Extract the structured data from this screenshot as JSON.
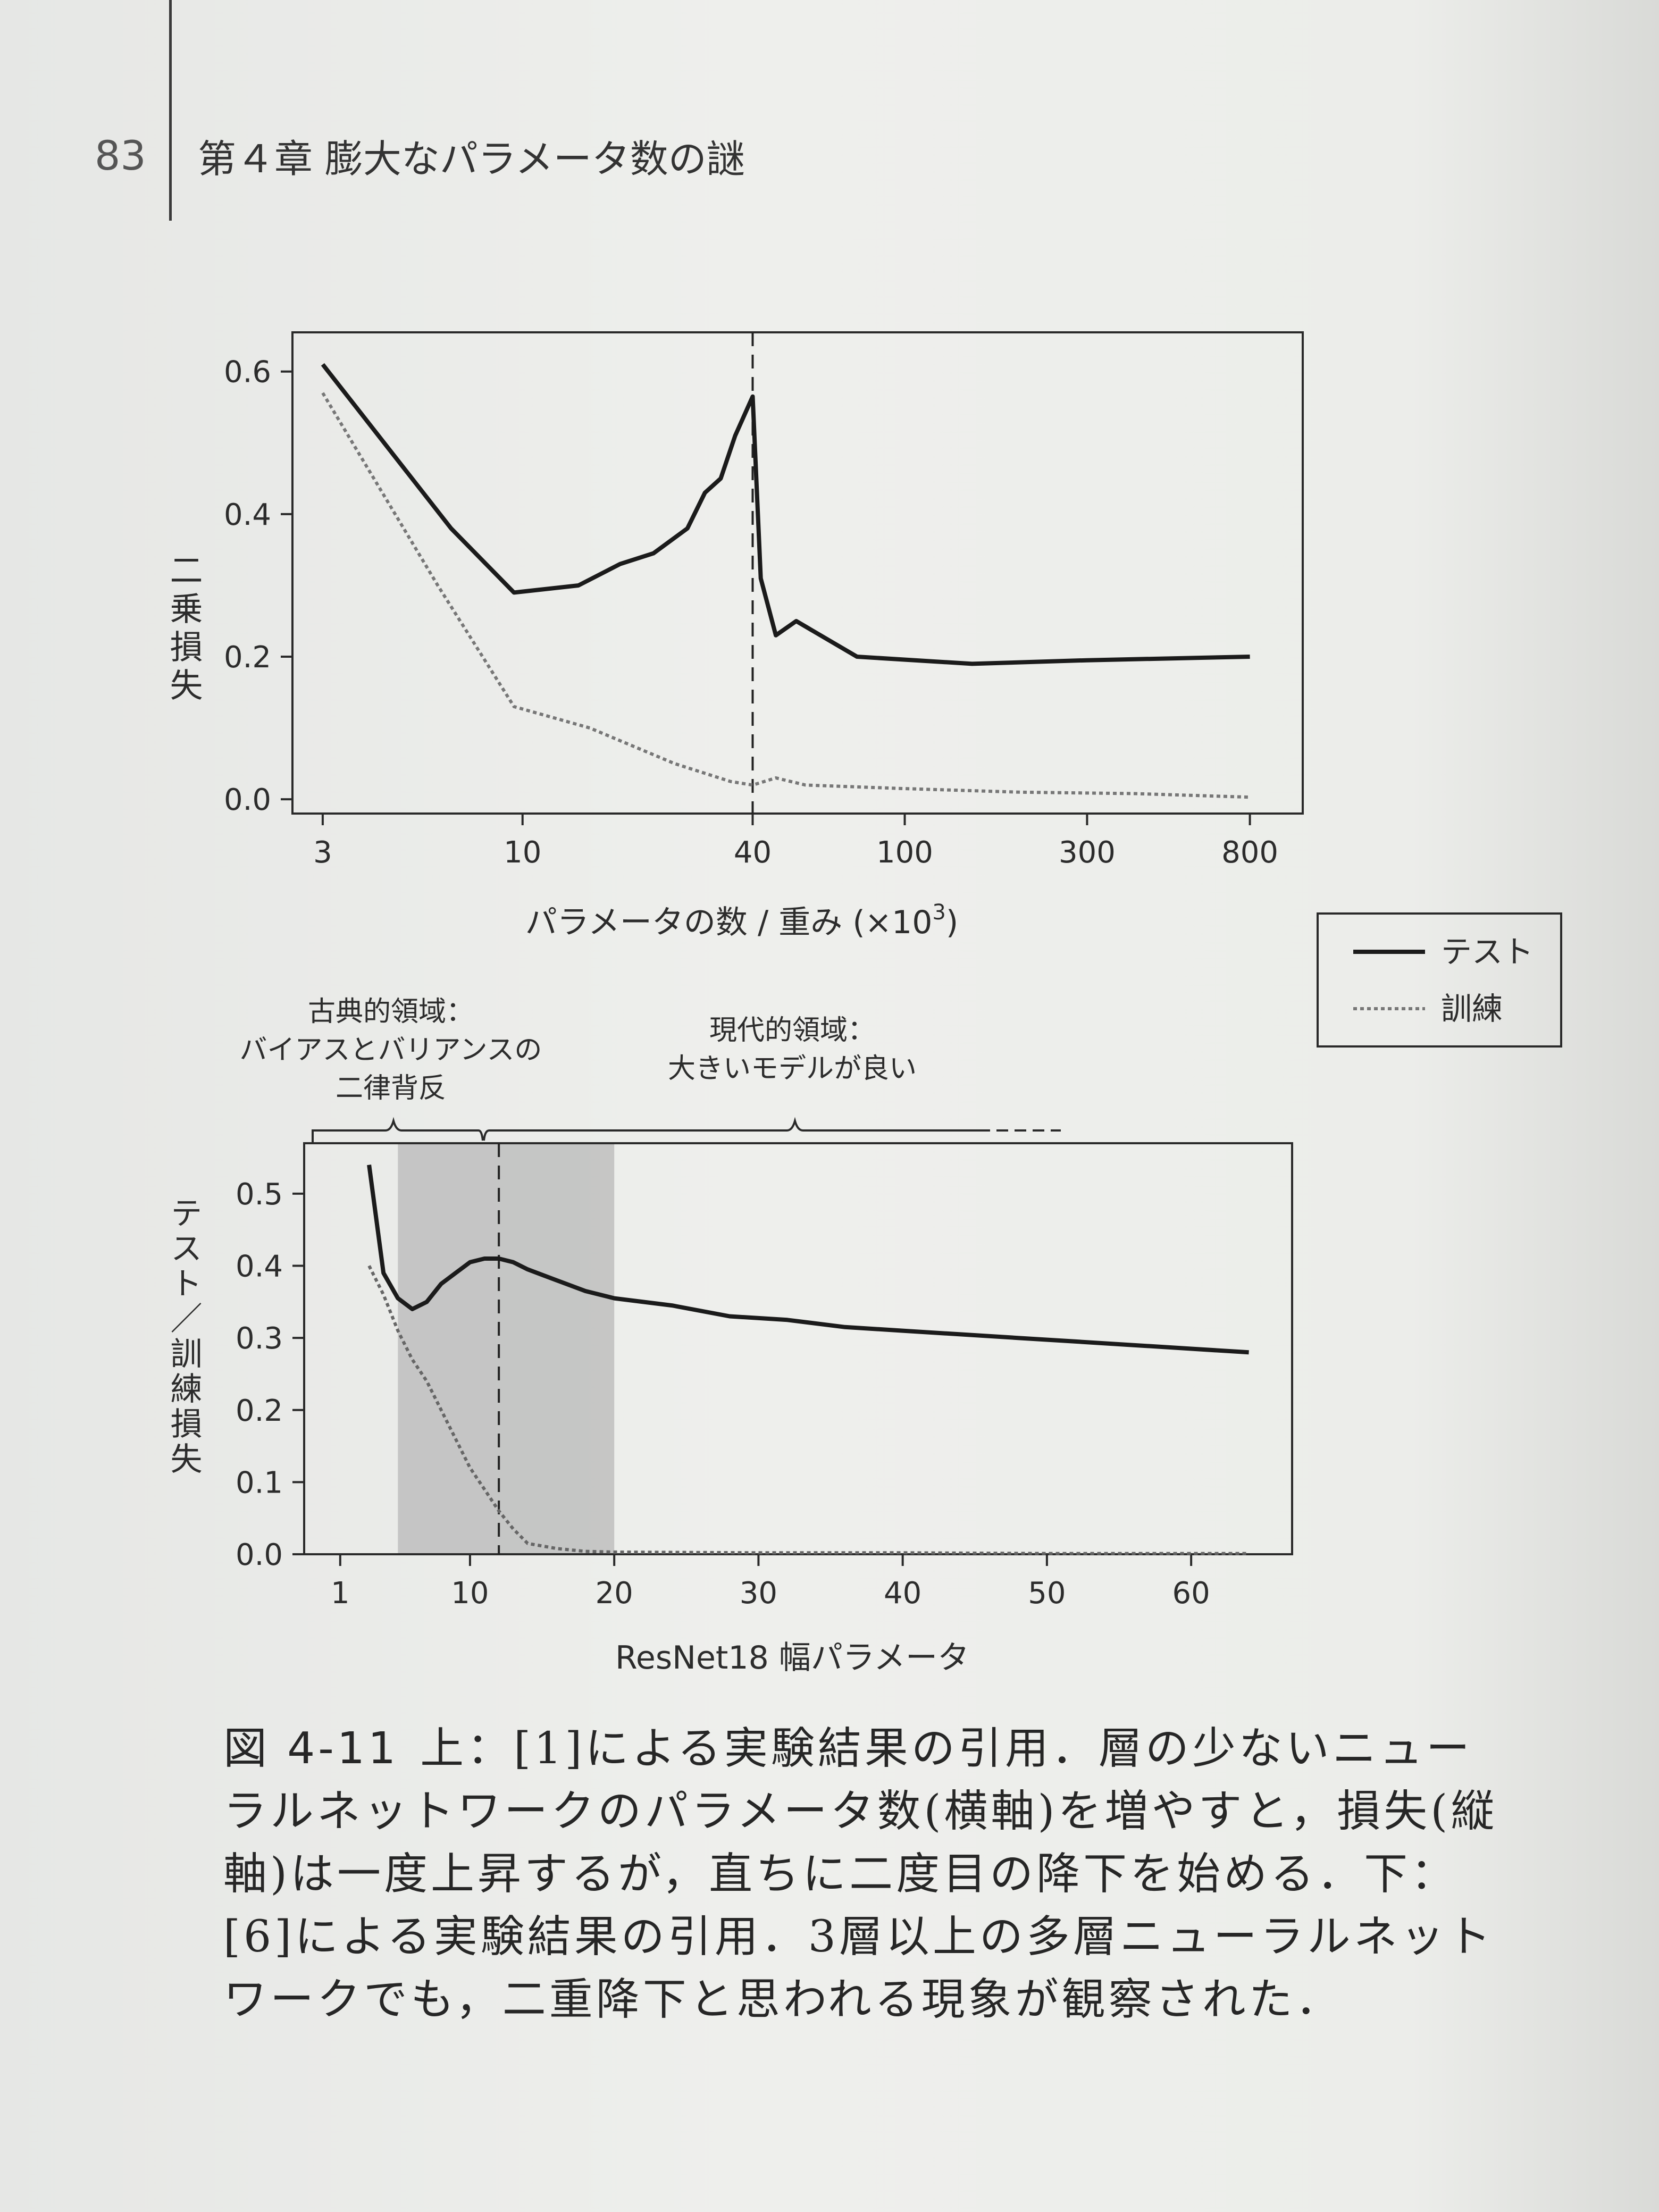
{
  "header": {
    "page_number": "83",
    "chapter_title": "第４章 膨大なパラメータ数の謎"
  },
  "legend": {
    "items": [
      {
        "label": "テスト",
        "style": "solid"
      },
      {
        "label": "訓練",
        "style": "dotted"
      }
    ]
  },
  "annotations": {
    "classical": [
      "古典的領域：",
      "バイアスとバリアンスの",
      "二律背反"
    ],
    "modern": [
      "現代的領域：",
      "大きいモデルが良い"
    ]
  },
  "chart_data": [
    {
      "type": "line",
      "xscale": "log",
      "xlabel_main": "パラメータの数 / 重み (×10",
      "xlabel_sup": "3",
      "xlabel_end": ")",
      "ylabel": "二乗損失",
      "xlim": [
        2.5,
        1100
      ],
      "ylim": [
        -0.02,
        0.655
      ],
      "xticks": [
        3,
        10,
        40,
        100,
        300,
        800
      ],
      "xtick_labels": [
        "3",
        "10",
        "40",
        "100",
        "300",
        "800"
      ],
      "yticks": [
        0.0,
        0.2,
        0.4,
        0.6
      ],
      "ytick_labels": [
        "0.0",
        "0.2",
        "0.4",
        "0.6"
      ],
      "vline": 40,
      "series": [
        {
          "name": "テスト",
          "style": "solid",
          "x": [
            3,
            6.5,
            9.5,
            14,
            18,
            22,
            27,
            30,
            33,
            36,
            40,
            42,
            46,
            52,
            75,
            150,
            300,
            800
          ],
          "y": [
            0.61,
            0.38,
            0.29,
            0.3,
            0.33,
            0.345,
            0.38,
            0.43,
            0.45,
            0.51,
            0.565,
            0.31,
            0.23,
            0.25,
            0.2,
            0.19,
            0.195,
            0.2
          ]
        },
        {
          "name": "訓練",
          "style": "dotted",
          "x": [
            3,
            6,
            9.5,
            15,
            25,
            35,
            40,
            46,
            55,
            100,
            200,
            400,
            800
          ],
          "y": [
            0.57,
            0.3,
            0.13,
            0.1,
            0.05,
            0.025,
            0.02,
            0.03,
            0.02,
            0.015,
            0.01,
            0.008,
            0.003
          ]
        }
      ]
    },
    {
      "type": "line",
      "xscale": "linear",
      "xlabel": "ResNet18 幅パラメータ",
      "ylabel": "テスト／訓練損失",
      "xlim": [
        -1.5,
        67
      ],
      "ylim": [
        0,
        0.57
      ],
      "xticks": [
        1,
        10,
        20,
        30,
        40,
        50,
        60
      ],
      "xtick_labels": [
        "1",
        "10",
        "20",
        "30",
        "40",
        "50",
        "60"
      ],
      "yticks": [
        0.0,
        0.1,
        0.2,
        0.3,
        0.4,
        0.5
      ],
      "ytick_labels": [
        "0.0",
        "0.1",
        "0.2",
        "0.3",
        "0.4",
        "0.5"
      ],
      "vline": 12,
      "shaded_region": [
        5,
        20
      ],
      "series": [
        {
          "name": "テスト",
          "style": "solid",
          "x": [
            3,
            4,
            5,
            6,
            7,
            8,
            9,
            10,
            11,
            12,
            13,
            14,
            16,
            18,
            20,
            24,
            28,
            32,
            36,
            40,
            44,
            48,
            52,
            56,
            60,
            64
          ],
          "y": [
            0.54,
            0.39,
            0.355,
            0.34,
            0.35,
            0.375,
            0.39,
            0.405,
            0.41,
            0.41,
            0.405,
            0.395,
            0.38,
            0.365,
            0.355,
            0.345,
            0.33,
            0.325,
            0.315,
            0.31,
            0.305,
            0.3,
            0.295,
            0.29,
            0.285,
            0.28
          ]
        },
        {
          "name": "訓練",
          "style": "dotted",
          "x": [
            3,
            4,
            5,
            6,
            7,
            8,
            9,
            10,
            11,
            12,
            13,
            14,
            16,
            18,
            20,
            30,
            40,
            50,
            64
          ],
          "y": [
            0.4,
            0.36,
            0.31,
            0.27,
            0.24,
            0.2,
            0.16,
            0.12,
            0.09,
            0.06,
            0.035,
            0.015,
            0.008,
            0.004,
            0.003,
            0.002,
            0.002,
            0.001,
            0.001
          ]
        }
      ]
    }
  ],
  "caption": {
    "figure_id": "図 4-11",
    "text": "上：[1]による実験結果の引用．層の少ないニューラルネットワークのパラメータ数(横軸)を増やすと，損失(縦軸)は一度上昇するが，直ちに二度目の降下を始める．下：[6]による実験結果の引用．3層以上の多層ニューラルネットワークでも，二重降下と思われる現象が観察された．"
  }
}
